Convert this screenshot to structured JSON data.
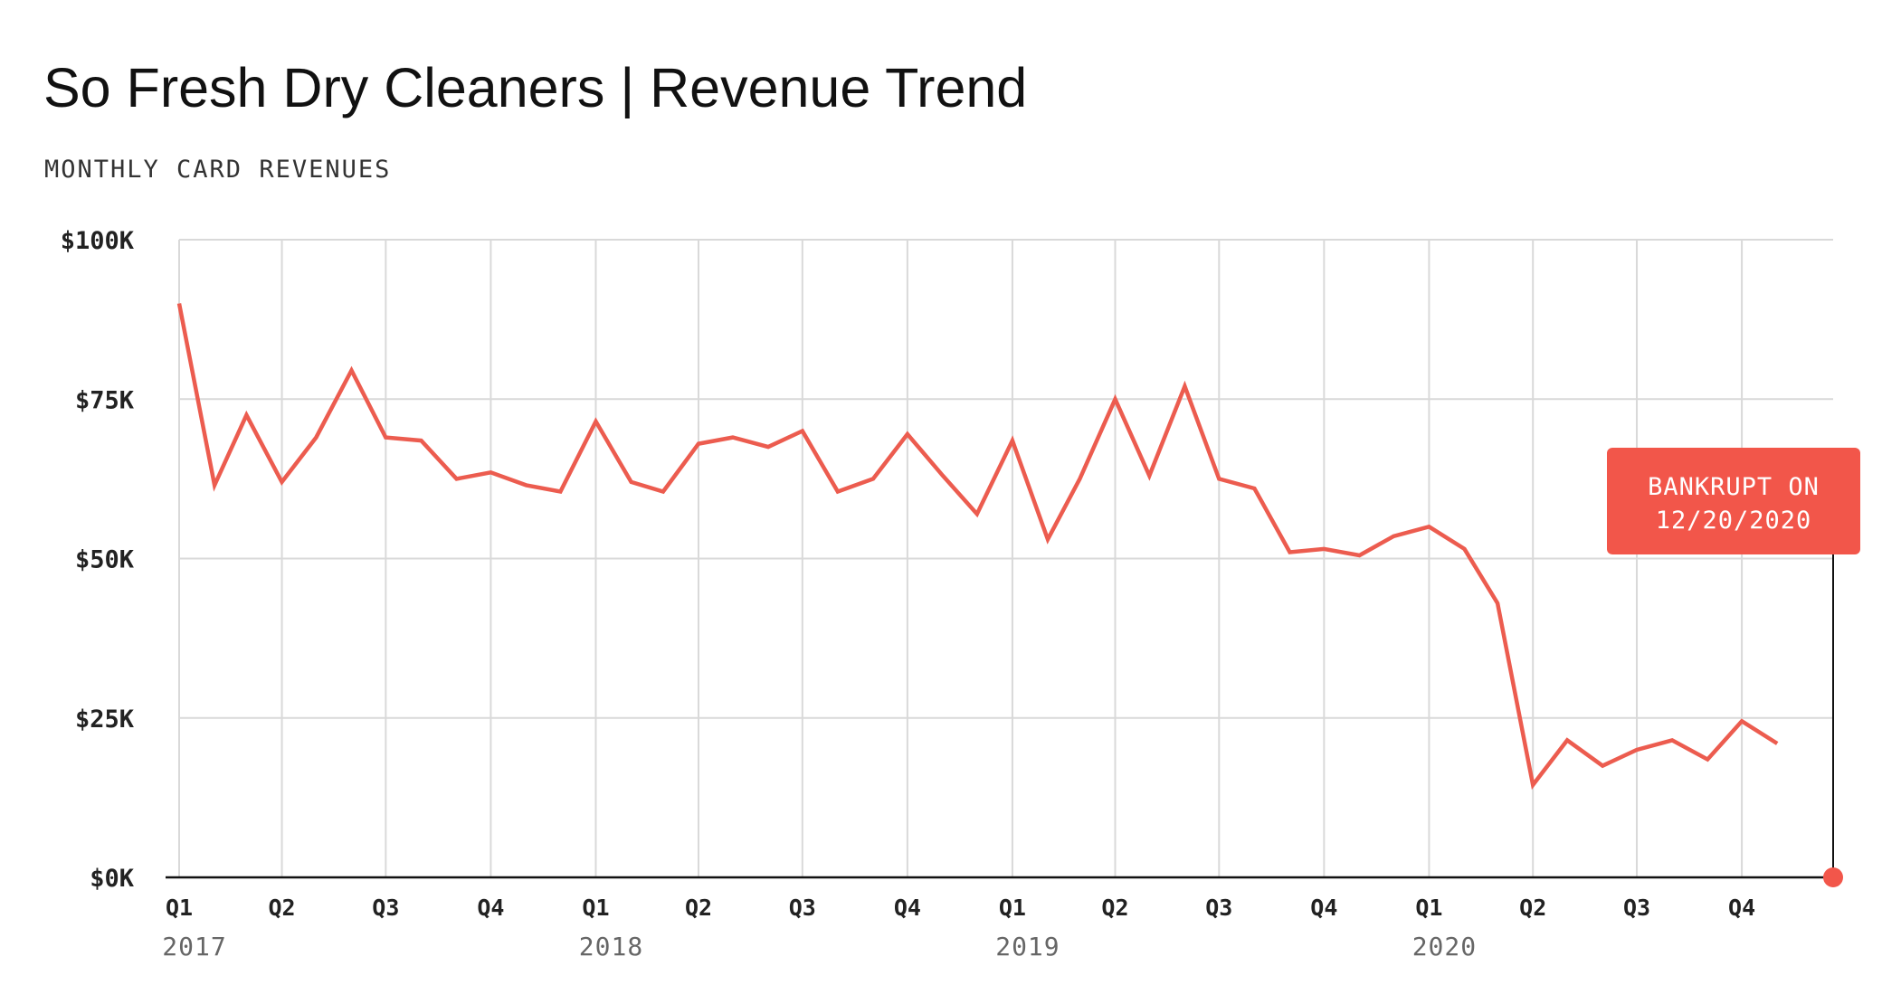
{
  "header": {
    "title": "So Fresh Dry Cleaners | Revenue Trend",
    "subtitle": "MONTHLY CARD REVENUES"
  },
  "colors": {
    "line": "#ec5c4f",
    "grid": "#d9d9d9",
    "axis": "#111111",
    "annotation_bg": "#f2564a"
  },
  "chart_data": {
    "type": "line",
    "title": "So Fresh Dry Cleaners | Revenue Trend",
    "subtitle": "MONTHLY CARD REVENUES",
    "x_start": "2017-01",
    "x_end": "2020-12-20",
    "ylim": [
      0,
      100000
    ],
    "y_ticks": [
      {
        "value": 0,
        "label": "$0K"
      },
      {
        "value": 25000,
        "label": "$25K"
      },
      {
        "value": 50000,
        "label": "$50K"
      },
      {
        "value": 75000,
        "label": "$75K"
      },
      {
        "value": 100000,
        "label": "$100K"
      }
    ],
    "x_ticks": [
      {
        "date": "2017-01",
        "label": "Q1",
        "year": "2017"
      },
      {
        "date": "2017-04",
        "label": "Q2"
      },
      {
        "date": "2017-07",
        "label": "Q3"
      },
      {
        "date": "2017-10",
        "label": "Q4"
      },
      {
        "date": "2018-01",
        "label": "Q1",
        "year": "2018"
      },
      {
        "date": "2018-04",
        "label": "Q2"
      },
      {
        "date": "2018-07",
        "label": "Q3"
      },
      {
        "date": "2018-10",
        "label": "Q4"
      },
      {
        "date": "2019-01",
        "label": "Q1",
        "year": "2019"
      },
      {
        "date": "2019-04",
        "label": "Q2"
      },
      {
        "date": "2019-07",
        "label": "Q3"
      },
      {
        "date": "2019-10",
        "label": "Q4"
      },
      {
        "date": "2020-01",
        "label": "Q1",
        "year": "2020"
      },
      {
        "date": "2020-04",
        "label": "Q2"
      },
      {
        "date": "2020-07",
        "label": "Q3"
      },
      {
        "date": "2020-10",
        "label": "Q4"
      }
    ],
    "series": [
      {
        "x": [
          "2017-01",
          "2017-02",
          "2017-03",
          "2017-04",
          "2017-05",
          "2017-06",
          "2017-07",
          "2017-08",
          "2017-09",
          "2017-10",
          "2017-11",
          "2017-12",
          "2018-01",
          "2018-02",
          "2018-03",
          "2018-04",
          "2018-05",
          "2018-06",
          "2018-07",
          "2018-08",
          "2018-09",
          "2018-10",
          "2018-11",
          "2018-12",
          "2019-01",
          "2019-02",
          "2019-03",
          "2019-04",
          "2019-05",
          "2019-06",
          "2019-07",
          "2019-08",
          "2019-09",
          "2019-10",
          "2019-11",
          "2019-12",
          "2020-01",
          "2020-02",
          "2020-03",
          "2020-04",
          "2020-05",
          "2020-06",
          "2020-07",
          "2020-08",
          "2020-09",
          "2020-10",
          "2020-11"
        ],
        "values": [
          90000,
          61500,
          72500,
          62000,
          69000,
          79500,
          69000,
          68500,
          62500,
          63500,
          61500,
          60500,
          71500,
          62000,
          60500,
          68000,
          69000,
          67500,
          70000,
          60500,
          62500,
          69500,
          63000,
          57000,
          68500,
          53000,
          62500,
          75000,
          63000,
          77000,
          62500,
          61000,
          51000,
          51500,
          50500,
          53500,
          55000,
          51500,
          43000,
          14500,
          21500,
          17500,
          20000,
          21500,
          18500,
          24500,
          21000
        ]
      }
    ],
    "annotation": {
      "date": "2020-12-20",
      "value": 0,
      "lines": [
        "BANKRUPT ON",
        "12/20/2020"
      ]
    }
  }
}
